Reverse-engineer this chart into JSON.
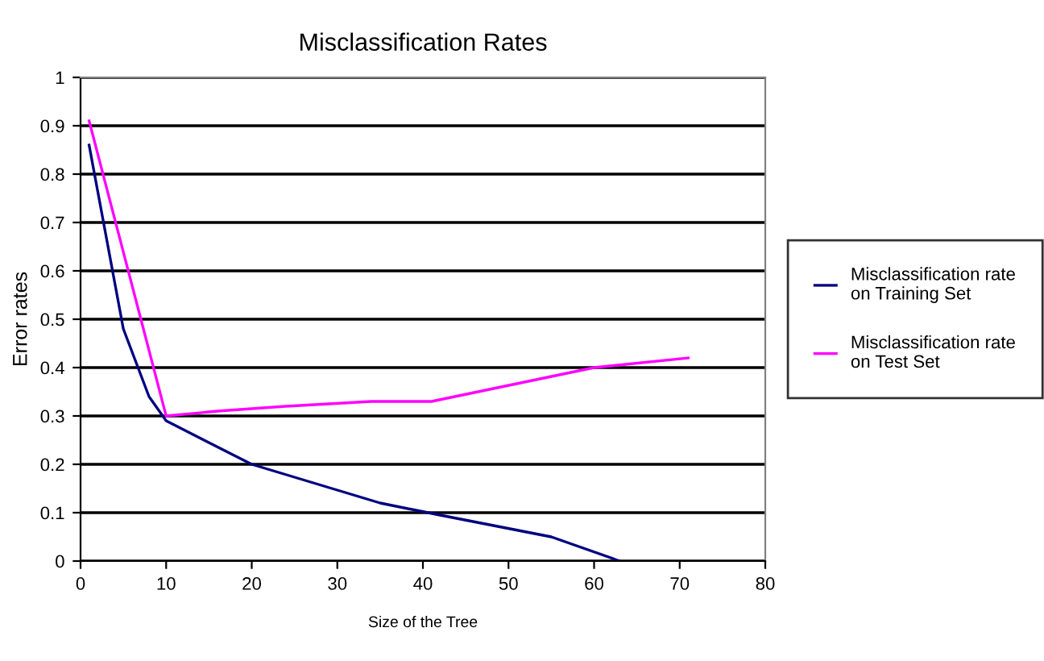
{
  "chart_data": {
    "type": "line",
    "title": "Misclassification Rates",
    "xlabel": "Size of the Tree",
    "ylabel": "Error rates",
    "series": [
      {
        "name": "Misclassification rate on Training Set",
        "color": "#000080",
        "x": [
          1,
          5,
          8,
          10,
          20,
          35,
          42,
          55,
          63
        ],
        "values": [
          0.86,
          0.48,
          0.34,
          0.29,
          0.2,
          0.12,
          0.095,
          0.05,
          0
        ]
      },
      {
        "name": "Misclassification rate on Test Set",
        "color": "#ff00ff",
        "x": [
          1,
          10,
          16,
          24,
          34,
          41,
          60,
          71
        ],
        "values": [
          0.91,
          0.3,
          0.31,
          0.32,
          0.33,
          0.33,
          0.4,
          0.42
        ]
      }
    ],
    "xlim": [
      0,
      80
    ],
    "xticks": [
      0,
      10,
      20,
      30,
      40,
      50,
      60,
      70,
      80
    ],
    "ylim": [
      0,
      1
    ],
    "yticks": [
      0,
      0.1,
      0.2,
      0.3,
      0.4,
      0.5,
      0.6,
      0.7,
      0.8,
      0.9,
      1
    ],
    "grid": "y",
    "legend": "right",
    "marker": "none",
    "line_style": "solid"
  }
}
